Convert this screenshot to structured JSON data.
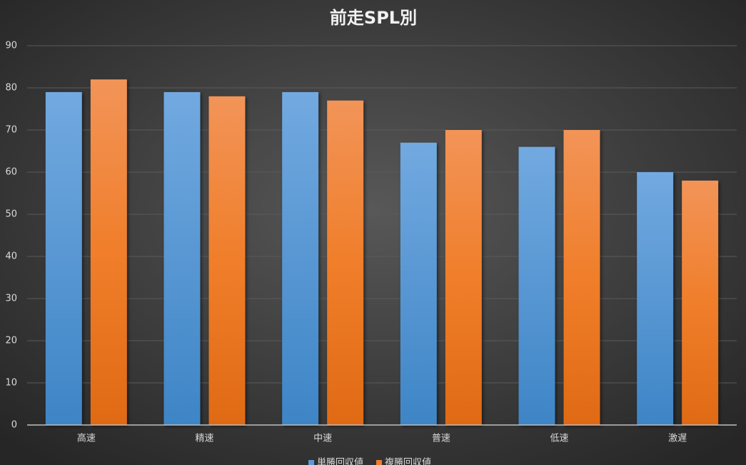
{
  "chart_data": {
    "type": "bar",
    "title": "前走SPL別",
    "categories": [
      "高速",
      "精速",
      "中速",
      "普速",
      "低速",
      "激遅"
    ],
    "series": [
      {
        "name": "単勝回収値",
        "color": "#5b9bd5",
        "values": [
          79,
          79,
          79,
          67,
          66,
          60
        ]
      },
      {
        "name": "複勝回収値",
        "color": "#ed7d31",
        "values": [
          82,
          78,
          77,
          70,
          70,
          58
        ]
      }
    ],
    "ylim": [
      0,
      90
    ],
    "yticks": [
      0,
      10,
      20,
      30,
      40,
      50,
      60,
      70,
      80,
      90
    ],
    "grid": true,
    "legend": "bottom"
  }
}
